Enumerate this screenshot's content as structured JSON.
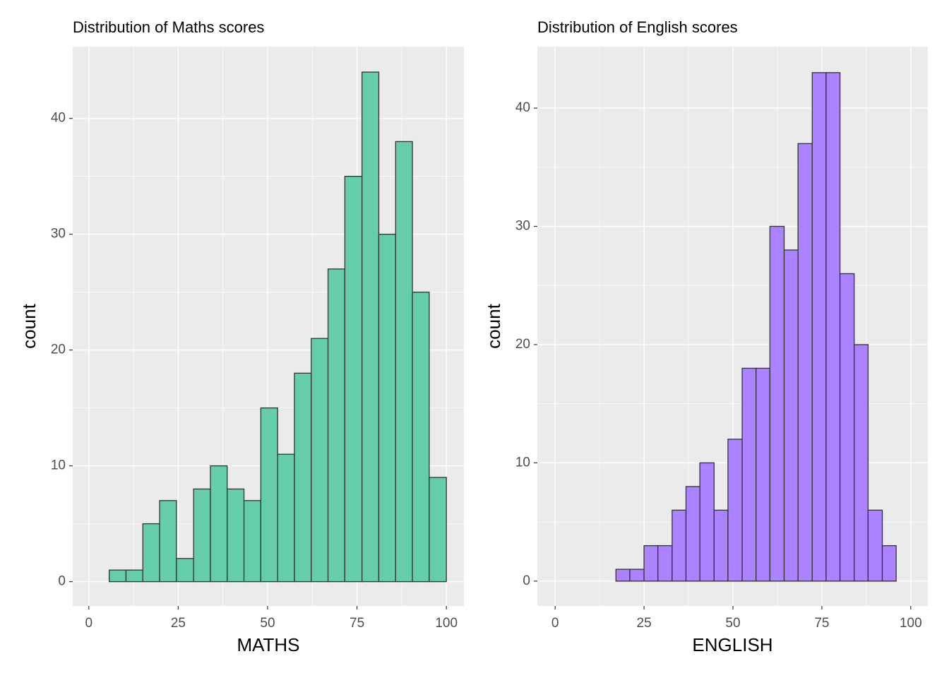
{
  "chart_data": [
    {
      "type": "histogram",
      "title": "Distribution of Maths scores",
      "x_label": "MATHS",
      "y_label": "count",
      "bins": [
        5.7,
        10.4,
        15.1,
        19.8,
        24.5,
        29.3,
        34.0,
        38.7,
        43.4,
        48.1,
        52.8,
        57.5,
        62.2,
        66.9,
        71.6,
        76.4,
        81.1,
        85.8,
        90.5,
        95.2,
        100
      ],
      "values": [
        1,
        1,
        5,
        7,
        2,
        8,
        10,
        8,
        7,
        15,
        11,
        18,
        21,
        27,
        35,
        44,
        30,
        38,
        25,
        9
      ],
      "color": "#66cdaa",
      "xlim": [
        -4.5,
        104.9
      ],
      "ylim": [
        -2.1,
        46.2
      ],
      "xticks": [
        0,
        25,
        50,
        75,
        100
      ],
      "yticks": [
        0,
        10,
        20,
        30,
        40
      ],
      "grid": true
    },
    {
      "type": "histogram",
      "title": "Distribution of English scores",
      "x_label": "ENGLISH",
      "y_label": "count",
      "bins": [
        17.1,
        21.0,
        25.0,
        28.9,
        32.9,
        36.8,
        40.7,
        44.7,
        48.6,
        52.6,
        56.5,
        60.4,
        64.4,
        68.3,
        72.3,
        76.2,
        80.1,
        84.1,
        88.0,
        92.0,
        95.9
      ],
      "values": [
        1,
        1,
        3,
        3,
        6,
        8,
        10,
        6,
        12,
        18,
        18,
        30,
        28,
        37,
        43,
        43,
        26,
        20,
        6,
        3
      ],
      "color": "#ab82ff",
      "xlim": [
        -5.0,
        104.8
      ],
      "ylim": [
        -2.1,
        45.2
      ],
      "xticks": [
        0,
        25,
        50,
        75,
        100
      ],
      "yticks": [
        0,
        10,
        20,
        30,
        40
      ],
      "grid": true
    }
  ]
}
